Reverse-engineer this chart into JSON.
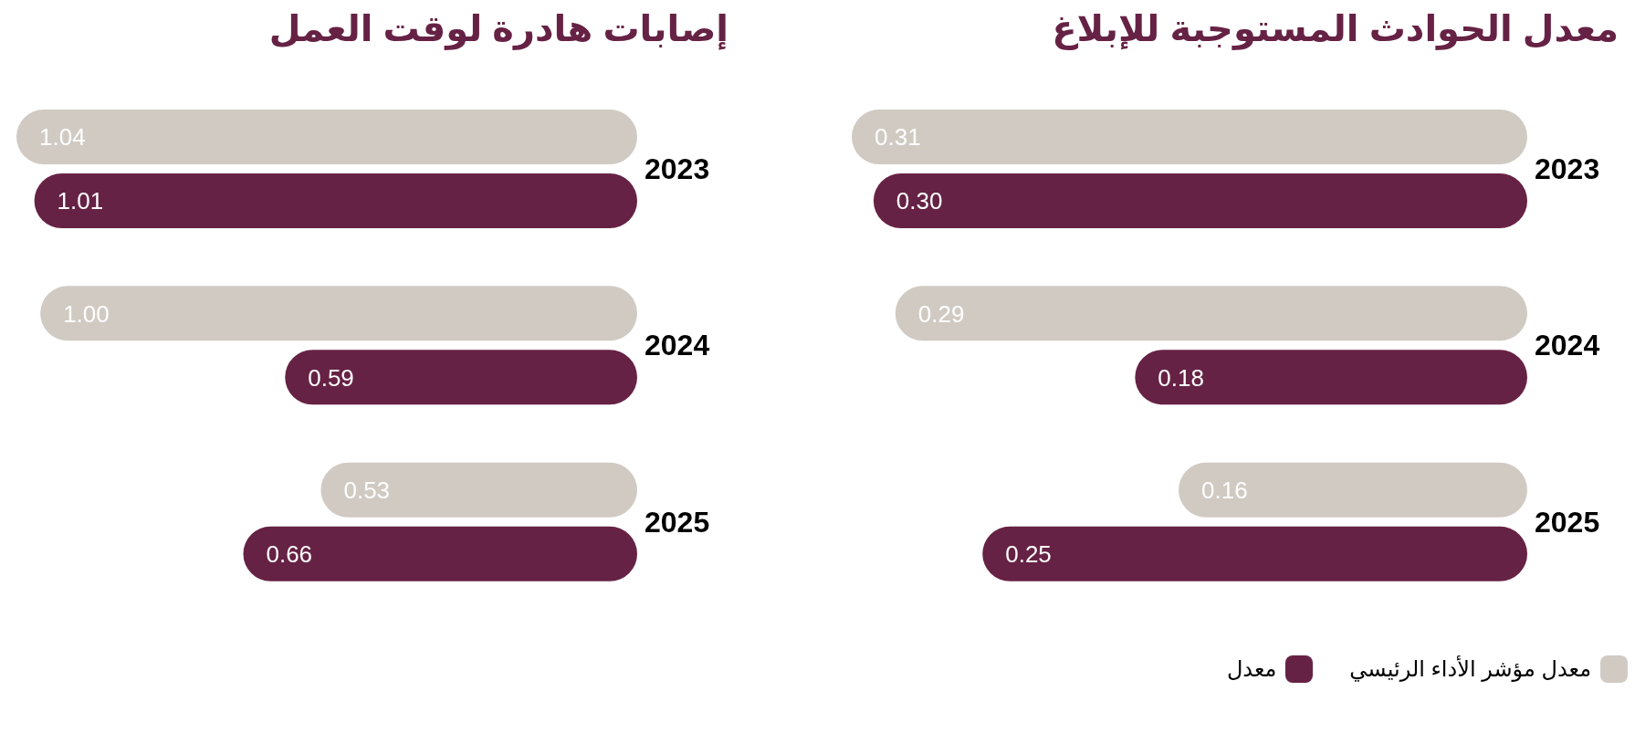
{
  "chart_data": [
    {
      "type": "bar",
      "orientation": "horizontal",
      "title": "معدل الحوادث المستوجبة للإبلاغ",
      "categories": [
        "2023",
        "2024",
        "2025"
      ],
      "legend": "bottom right",
      "series": [
        {
          "name": "معدل مؤشر الأداء الرئيسي",
          "color": "#d0cac3",
          "values": [
            0.31,
            0.29,
            0.16
          ],
          "value_labels": [
            "0.31",
            "0.29",
            "0.16"
          ]
        },
        {
          "name": "معدل",
          "color": "#662244",
          "values": [
            0.3,
            0.18,
            0.25
          ],
          "value_labels": [
            "0.30",
            "0.18",
            "0.25"
          ]
        }
      ]
    },
    {
      "type": "bar",
      "orientation": "horizontal",
      "title": "إصابات هادرة لوقت العمل",
      "categories": [
        "2023",
        "2024",
        "2025"
      ],
      "series": [
        {
          "color": "#d0cac3",
          "values": [
            1.04,
            1.0,
            0.53
          ],
          "value_labels": [
            "1.04",
            "1.00",
            "0.53"
          ]
        },
        {
          "color": "#662244",
          "values": [
            1.01,
            0.59,
            0.66
          ],
          "value_labels": [
            "1.01",
            "0.59",
            "0.66"
          ]
        }
      ]
    }
  ]
}
